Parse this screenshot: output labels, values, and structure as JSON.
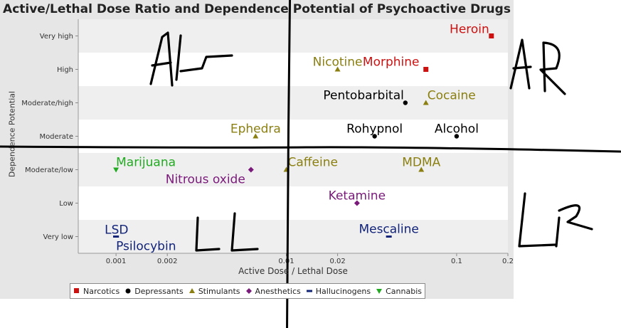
{
  "chart_data": {
    "type": "scatter",
    "title": "Active/Lethal Dose Ratio and Dependence Potential of Psychoactive Drugs",
    "xlabel": "Active Dose / Lethal Dose",
    "ylabel": "Dependence Potential",
    "xscale": "log",
    "xlim": [
      0.0006,
      0.2
    ],
    "x_ticks": [
      {
        "value": 0.001,
        "label": "0.001"
      },
      {
        "value": 0.002,
        "label": "0.002"
      },
      {
        "value": 0.01,
        "label": "0.01"
      },
      {
        "value": 0.02,
        "label": "0.02"
      },
      {
        "value": 0.1,
        "label": "0.1"
      },
      {
        "value": 0.2,
        "label": "0.2"
      }
    ],
    "y_categories": [
      "Very low",
      "Low",
      "Moderate/low",
      "Moderate",
      "Moderate/high",
      "High",
      "Very high"
    ],
    "legend_position": "bottom",
    "series": [
      {
        "name": "Narcotics",
        "color": "#cc1111",
        "marker": "square",
        "points": [
          {
            "label": "Heroin",
            "x": 0.16,
            "y": "Very high"
          },
          {
            "label": "Morphine",
            "x": 0.066,
            "y": "High"
          }
        ]
      },
      {
        "name": "Depressants",
        "color": "#000000",
        "marker": "circle",
        "points": [
          {
            "label": "Pentobarbital",
            "x": 0.05,
            "y": "Moderate/high"
          },
          {
            "label": "Rohypnol",
            "x": 0.033,
            "y": "Moderate"
          },
          {
            "label": "Alcohol",
            "x": 0.1,
            "y": "Moderate"
          }
        ]
      },
      {
        "name": "Stimulants",
        "color": "#8a7f10",
        "marker": "triangle",
        "points": [
          {
            "label": "Nicotine",
            "x": 0.02,
            "y": "High"
          },
          {
            "label": "Cocaine",
            "x": 0.066,
            "y": "Moderate/high"
          },
          {
            "label": "Ephedra",
            "x": 0.0066,
            "y": "Moderate"
          },
          {
            "label": "Caffeine",
            "x": 0.01,
            "y": "Moderate/low"
          },
          {
            "label": "MDMA",
            "x": 0.062,
            "y": "Moderate/low"
          }
        ]
      },
      {
        "name": "Anesthetics",
        "color": "#7a1a7a",
        "marker": "diamond",
        "points": [
          {
            "label": "Nitrous oxide",
            "x": 0.0062,
            "y": "Moderate/low"
          },
          {
            "label": "Ketamine",
            "x": 0.026,
            "y": "Low"
          }
        ]
      },
      {
        "name": "Hallucinogens",
        "color": "#12237a",
        "marker": "rect",
        "points": [
          {
            "label": "LSD",
            "x": 0.001,
            "y": "Very low"
          },
          {
            "label": "Psilocybin",
            "x": 0.001,
            "y": "Very low"
          },
          {
            "label": "Mescaline",
            "x": 0.04,
            "y": "Very low"
          }
        ]
      },
      {
        "name": "Cannabis",
        "color": "#22aa22",
        "marker": "triangle-down",
        "points": [
          {
            "label": "Marijuana",
            "x": 0.001,
            "y": "Moderate/low"
          }
        ]
      }
    ],
    "annotations": [
      {
        "type": "handwritten-line",
        "orientation": "vertical",
        "at_x": 0.01
      },
      {
        "type": "handwritten-line",
        "orientation": "horizontal",
        "between": [
          "Moderate",
          "Moderate/low"
        ]
      },
      {
        "type": "handwritten-text",
        "text": "AL",
        "quadrant": "top-left"
      },
      {
        "type": "handwritten-text",
        "text": "AR",
        "quadrant": "top-right"
      },
      {
        "type": "handwritten-text",
        "text": "LL",
        "quadrant": "bottom-left"
      },
      {
        "type": "handwritten-text",
        "text": "LR",
        "quadrant": "bottom-right"
      }
    ]
  }
}
